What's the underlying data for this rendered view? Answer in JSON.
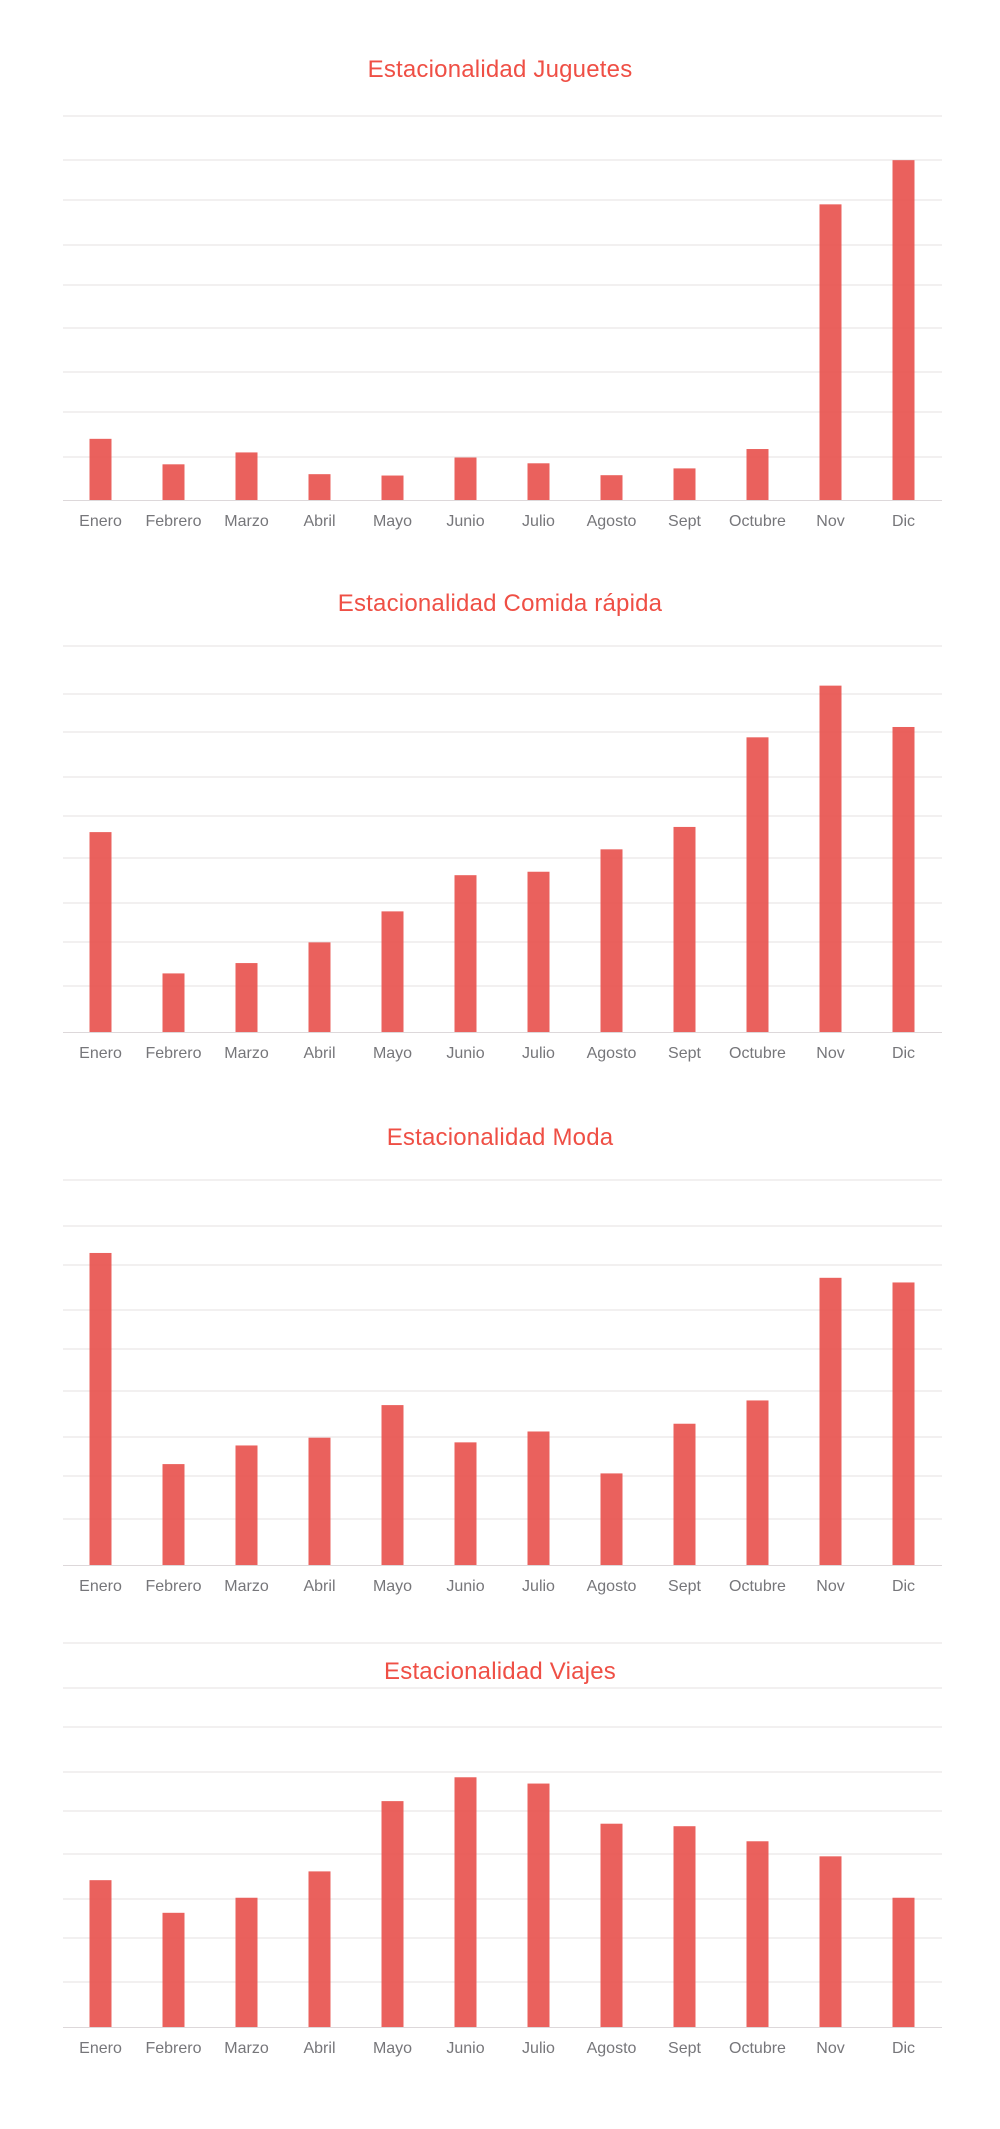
{
  "colors": {
    "bar": "#e8504b",
    "title": "#ef4f45",
    "grid": "#e6e0e2",
    "tick": "#76767a",
    "axis": "#ddd8da"
  },
  "chart_data": [
    {
      "type": "bar",
      "title": "Estacionalidad Juguetes",
      "xlabel": "",
      "ylabel": "",
      "grid": true,
      "legend": "none",
      "categories": [
        "Enero",
        "Febrero",
        "Marzo",
        "Abril",
        "Mayo",
        "Junio",
        "Julio",
        "Agosto",
        "Sept",
        "Octubre",
        "Nov",
        "Dic"
      ],
      "values": [
        18,
        10.5,
        14,
        7.6,
        7.2,
        12.5,
        10.8,
        7.3,
        9.3,
        15,
        87,
        100
      ],
      "ylim": [
        0,
        113
      ]
    },
    {
      "type": "bar",
      "title": "Estacionalidad Comida rápida",
      "xlabel": "",
      "ylabel": "",
      "grid": true,
      "legend": "none",
      "categories": [
        "Enero",
        "Febrero",
        "Marzo",
        "Abril",
        "Mayo",
        "Junio",
        "Julio",
        "Agosto",
        "Sept",
        "Octubre",
        "Nov",
        "Dic"
      ],
      "values": [
        58,
        17,
        20,
        26,
        35,
        45.5,
        46.5,
        53,
        59.5,
        85.5,
        100.5,
        88.5
      ],
      "ylim": [
        0,
        112
      ]
    },
    {
      "type": "bar",
      "title": "Estacionalidad Moda",
      "xlabel": "",
      "ylabel": "",
      "grid": true,
      "legend": "none",
      "categories": [
        "Enero",
        "Febrero",
        "Marzo",
        "Abril",
        "Mayo",
        "Junio",
        "Julio",
        "Agosto",
        "Sept",
        "Octubre",
        "Nov",
        "Dic"
      ],
      "values": [
        100.5,
        32.5,
        38.5,
        41,
        51.5,
        39.5,
        43,
        29.5,
        45.5,
        53,
        92.5,
        91
      ],
      "ylim": [
        0,
        124
      ]
    },
    {
      "type": "bar",
      "title": "Estacionalidad Viajes",
      "xlabel": "",
      "ylabel": "",
      "grid": true,
      "legend": "none",
      "categories": [
        "Enero",
        "Febrero",
        "Marzo",
        "Abril",
        "Mayo",
        "Junio",
        "Julio",
        "Agosto",
        "Sept",
        "Octubre",
        "Nov",
        "Dic"
      ],
      "values": [
        58.5,
        45.5,
        51.5,
        62,
        90,
        99.5,
        97,
        81,
        80,
        74,
        68,
        51.5
      ],
      "ylim": [
        0,
        153
      ]
    }
  ]
}
